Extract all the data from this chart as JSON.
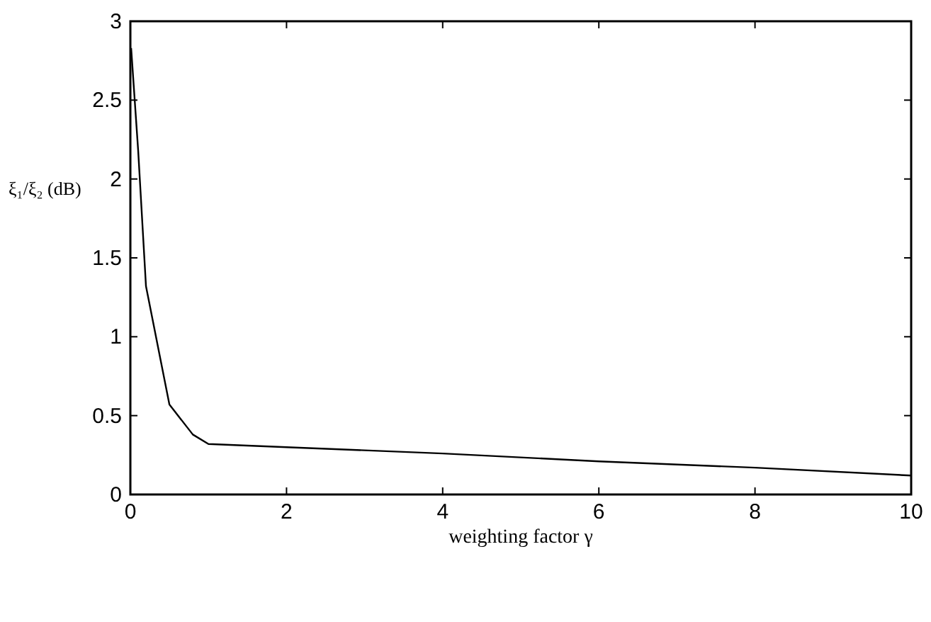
{
  "chart_data": {
    "type": "line",
    "xlabel": "weighting factor  γ",
    "ylabel": "ξ₁/ξ₂ (dB)",
    "x": [
      0.01,
      0.1,
      0.2,
      0.5,
      0.8,
      1,
      2,
      4,
      6,
      8,
      10
    ],
    "series": [
      {
        "color": "#000000",
        "values": [
          2.83,
          2.18,
          1.32,
          0.57,
          0.38,
          0.32,
          0.3,
          0.26,
          0.21,
          0.17,
          0.12
        ]
      }
    ],
    "xlim": [
      0,
      10
    ],
    "ylim": [
      0,
      3
    ],
    "xticks": [
      0,
      2,
      4,
      6,
      8,
      10
    ],
    "yticks": [
      0,
      0.5,
      1,
      1.5,
      2,
      2.5,
      3
    ],
    "grid": false,
    "marker": "none",
    "line_style": "solid"
  }
}
